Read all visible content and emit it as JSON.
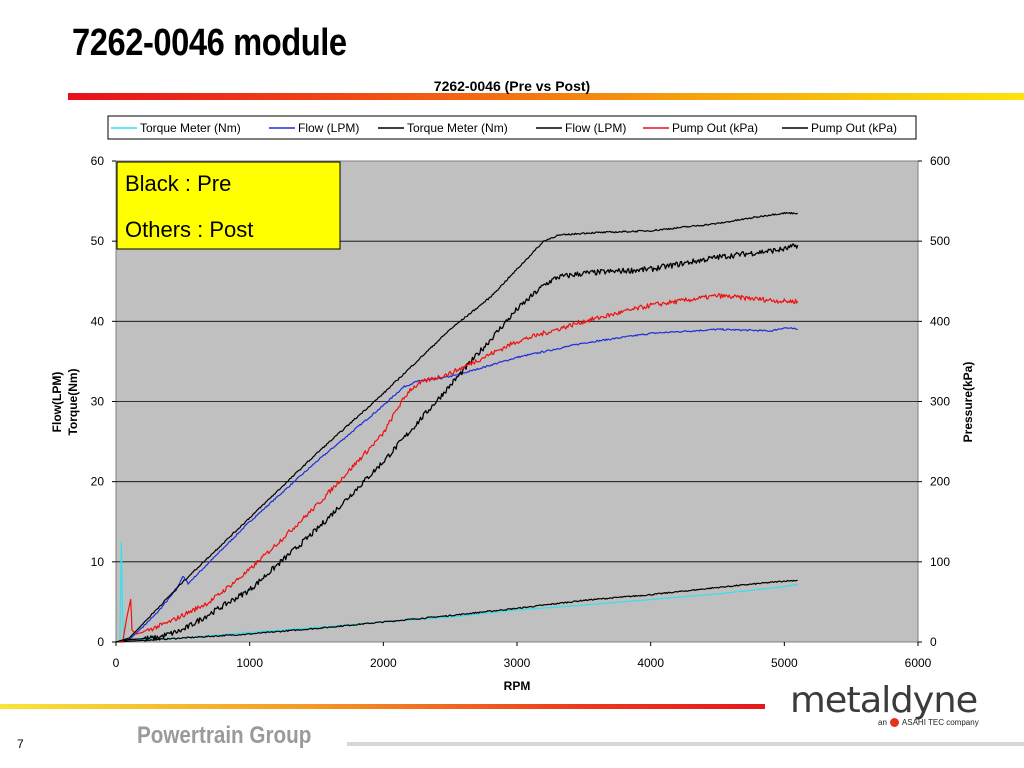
{
  "slide": {
    "title": "7262-0046 module",
    "footer": "Powertrain Group",
    "page_number": "7",
    "logo": {
      "name": "metaldyne",
      "tagline_before": "an",
      "tagline_after": "ASAHI TEC company",
      "mark_icon": "asahi-mark-icon"
    }
  },
  "colors": {
    "title_rule_start": "#e8101a",
    "title_rule_end": "#fde40a",
    "plot_bg": "#c0c0c0",
    "note_bg": "#ffff00",
    "footer_text": "#9a9a9a"
  },
  "chart_data": {
    "type": "line",
    "title": "7262-0046 (Pre vs Post)",
    "xlabel": "RPM",
    "ylabel_lines": [
      "Flow(LPM)",
      "Torque(Nm)"
    ],
    "y2label": "Pressure(kPa)",
    "xlim": [
      0,
      6000
    ],
    "ylim": [
      0,
      60
    ],
    "y2lim": [
      0,
      600
    ],
    "x_ticks": [
      "0",
      "1000",
      "2000",
      "3000",
      "4000",
      "5000",
      "6000"
    ],
    "y_ticks": [
      "0",
      "10",
      "20",
      "30",
      "40",
      "50",
      "60"
    ],
    "y2_ticks": [
      "0",
      "100",
      "200",
      "300",
      "400",
      "500",
      "600"
    ],
    "grid": true,
    "legend_position": "top",
    "annotation": {
      "lines": [
        "Black : Pre",
        "Others : Post"
      ]
    },
    "series": [
      {
        "name": "Torque Meter (Nm)",
        "color": "#33e0ee",
        "axis": "left",
        "x": [
          0,
          30,
          40,
          50,
          60,
          80,
          100,
          500,
          1000,
          1500,
          2000,
          2500,
          3000,
          3500,
          4000,
          4500,
          5000,
          5100
        ],
        "y": [
          0,
          0.3,
          12.5,
          3,
          0.5,
          0.2,
          0.3,
          0.5,
          1.2,
          1.8,
          2.5,
          3.1,
          4.0,
          4.6,
          5.3,
          6.0,
          6.9,
          7.2
        ],
        "noise": 0
      },
      {
        "name": "Flow (LPM)",
        "color": "#1f30d8",
        "axis": "left",
        "x": [
          0,
          100,
          300,
          450,
          500,
          540,
          1000,
          1500,
          2000,
          2150,
          2250,
          2400,
          2550,
          3000,
          3500,
          4000,
          4500,
          4900,
          5000,
          5100
        ],
        "y": [
          0,
          0.3,
          3.5,
          6.5,
          8.2,
          7.3,
          15,
          22.5,
          29.5,
          31.8,
          32.5,
          32.8,
          33.3,
          35.5,
          37.3,
          38.5,
          39.0,
          38.8,
          39.2,
          39.0
        ],
        "noise": 0.1
      },
      {
        "name": "Torque Meter (Nm)",
        "color": "#000000",
        "axis": "left",
        "x": [
          0,
          500,
          1000,
          1500,
          2000,
          2500,
          3000,
          3500,
          4000,
          4500,
          5000,
          5100
        ],
        "y": [
          0,
          0.5,
          1.0,
          1.7,
          2.5,
          3.3,
          4.2,
          5.2,
          5.9,
          6.8,
          7.6,
          7.7
        ],
        "noise": 0.08
      },
      {
        "name": "Flow (LPM)",
        "color": "#000000",
        "axis": "left",
        "x": [
          0,
          100,
          300,
          500,
          1000,
          1500,
          2000,
          2500,
          3000,
          3200,
          3300,
          3500,
          4000,
          4500,
          5000,
          5100
        ],
        "y": [
          0,
          0.3,
          0.5,
          1.5,
          6.5,
          14,
          22.5,
          32,
          41.5,
          44.5,
          45.5,
          46,
          46.5,
          48,
          49,
          49.5
        ],
        "noise": 0.35
      },
      {
        "name": "Pump Out (kPa)",
        "color": "#ee1111",
        "axis": "right",
        "x": [
          0,
          50,
          80,
          110,
          120,
          150,
          200,
          400,
          700,
          1000,
          1500,
          2000,
          2100,
          2200,
          2300,
          2500,
          3000,
          3500,
          4000,
          4500,
          5000,
          5100
        ],
        "y": [
          0,
          0,
          30,
          53,
          15,
          10,
          12,
          25,
          50,
          90,
          170,
          260,
          290,
          315,
          325,
          335,
          375,
          400,
          420,
          432,
          425,
          425
        ],
        "noise": 3
      },
      {
        "name": "Pump Out (kPa)",
        "color": "#000000",
        "axis": "right",
        "x": [
          0,
          100,
          500,
          1000,
          1500,
          2000,
          2500,
          2800,
          3000,
          3200,
          3300,
          3500,
          4000,
          4500,
          4900,
          5000,
          5100
        ],
        "y": [
          0,
          5,
          75,
          155,
          235,
          310,
          390,
          430,
          465,
          500,
          507,
          510,
          513,
          522,
          533,
          535,
          535
        ],
        "noise": 1
      }
    ]
  }
}
